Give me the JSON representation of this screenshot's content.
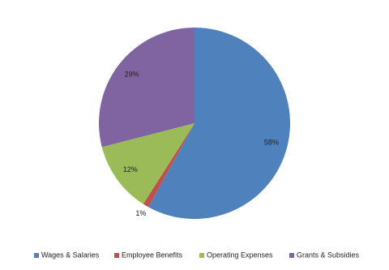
{
  "chart_data": {
    "type": "pie",
    "categories": [
      "Wages & Salaries",
      "Employee Benefits",
      "Operating Expenses",
      "Grants & Subsidies"
    ],
    "values": [
      58,
      1,
      12,
      29
    ],
    "value_labels": [
      "58%",
      "1%",
      "12%",
      "29%"
    ],
    "colors": [
      "#4f81bd",
      "#c0504d",
      "#9bbb59",
      "#8064a2"
    ],
    "legend": "bottom"
  }
}
